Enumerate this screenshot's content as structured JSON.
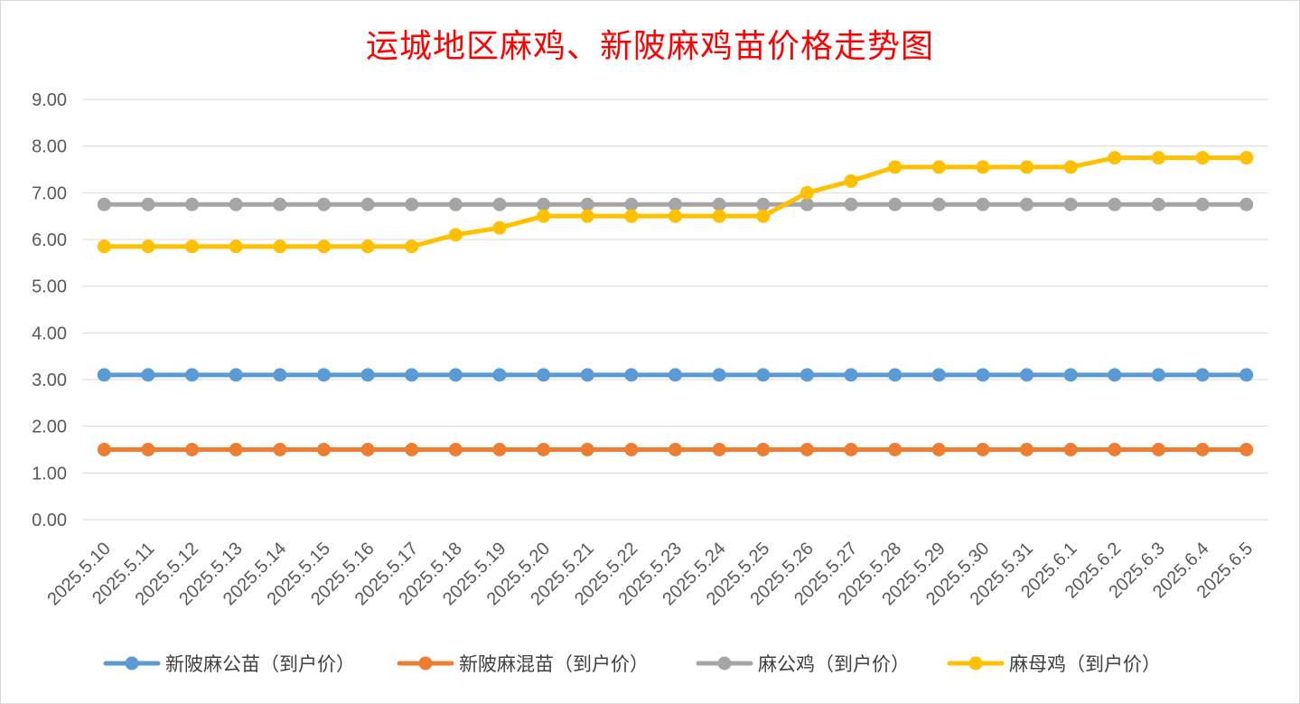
{
  "chart_data": {
    "type": "line",
    "title": "运城地区麻鸡、新陂麻鸡苗价格走势图",
    "xlabel": "",
    "ylabel": "",
    "ylim": [
      0,
      9
    ],
    "y_ticks": [
      "0.00",
      "1.00",
      "2.00",
      "3.00",
      "4.00",
      "5.00",
      "6.00",
      "7.00",
      "8.00",
      "9.00"
    ],
    "grid": true,
    "legend_position": "bottom",
    "categories": [
      "2025.5.10",
      "2025.5.11",
      "2025.5.12",
      "2025.5.13",
      "2025.5.14",
      "2025.5.15",
      "2025.5.16",
      "2025.5.17",
      "2025.5.18",
      "2025.5.19",
      "2025.5.20",
      "2025.5.21",
      "2025.5.22",
      "2025.5.23",
      "2025.5.24",
      "2025.5.25",
      "2025.5.26",
      "2025.5.27",
      "2025.5.28",
      "2025.5.29",
      "2025.5.30",
      "2025.5.31",
      "2025.6.1",
      "2025.6.2",
      "2025.6.3",
      "2025.6.4",
      "2025.6.5"
    ],
    "series": [
      {
        "name": "新陂麻公苗（到户价）",
        "color": "#5b9bd5",
        "values": [
          3.1,
          3.1,
          3.1,
          3.1,
          3.1,
          3.1,
          3.1,
          3.1,
          3.1,
          3.1,
          3.1,
          3.1,
          3.1,
          3.1,
          3.1,
          3.1,
          3.1,
          3.1,
          3.1,
          3.1,
          3.1,
          3.1,
          3.1,
          3.1,
          3.1,
          3.1,
          3.1
        ]
      },
      {
        "name": "新陂麻混苗（到户价）",
        "color": "#ed7d31",
        "values": [
          1.5,
          1.5,
          1.5,
          1.5,
          1.5,
          1.5,
          1.5,
          1.5,
          1.5,
          1.5,
          1.5,
          1.5,
          1.5,
          1.5,
          1.5,
          1.5,
          1.5,
          1.5,
          1.5,
          1.5,
          1.5,
          1.5,
          1.5,
          1.5,
          1.5,
          1.5,
          1.5
        ]
      },
      {
        "name": "麻公鸡（到户价）",
        "color": "#a5a5a5",
        "values": [
          6.75,
          6.75,
          6.75,
          6.75,
          6.75,
          6.75,
          6.75,
          6.75,
          6.75,
          6.75,
          6.75,
          6.75,
          6.75,
          6.75,
          6.75,
          6.75,
          6.75,
          6.75,
          6.75,
          6.75,
          6.75,
          6.75,
          6.75,
          6.75,
          6.75,
          6.75,
          6.75
        ]
      },
      {
        "name": "麻母鸡（到户价）",
        "color": "#ffc000",
        "values": [
          5.85,
          5.85,
          5.85,
          5.85,
          5.85,
          5.85,
          5.85,
          5.85,
          6.1,
          6.25,
          6.5,
          6.5,
          6.5,
          6.5,
          6.5,
          6.5,
          7.0,
          7.25,
          7.55,
          7.55,
          7.55,
          7.55,
          7.55,
          7.75,
          7.75,
          7.75,
          7.75
        ]
      }
    ]
  }
}
